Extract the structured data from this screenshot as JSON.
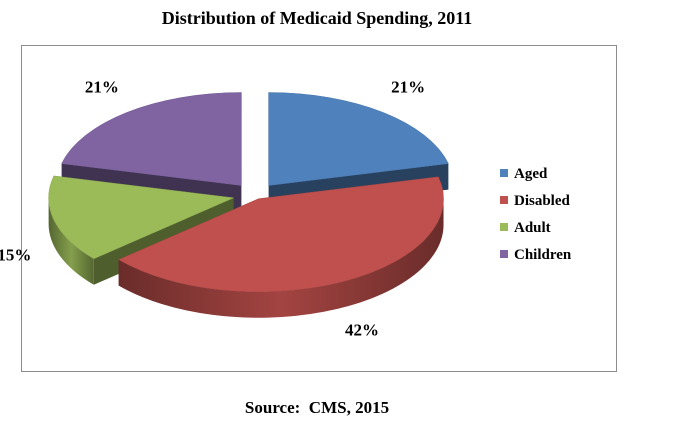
{
  "chart_data": {
    "type": "pie",
    "title": "Distribution of Medicaid Spending, 2011",
    "categories": [
      "Aged",
      "Disabled",
      "Adult",
      "Children"
    ],
    "values": [
      21,
      42,
      15,
      21
    ],
    "value_labels": [
      "21%",
      "42%",
      "15%",
      "21%"
    ],
    "colors": [
      "#4f81bd",
      "#c0504d",
      "#9bbb59",
      "#8064a2"
    ],
    "legend_position": "right",
    "style": "exploded-3d"
  },
  "source": "Source:  CMS, 2015"
}
